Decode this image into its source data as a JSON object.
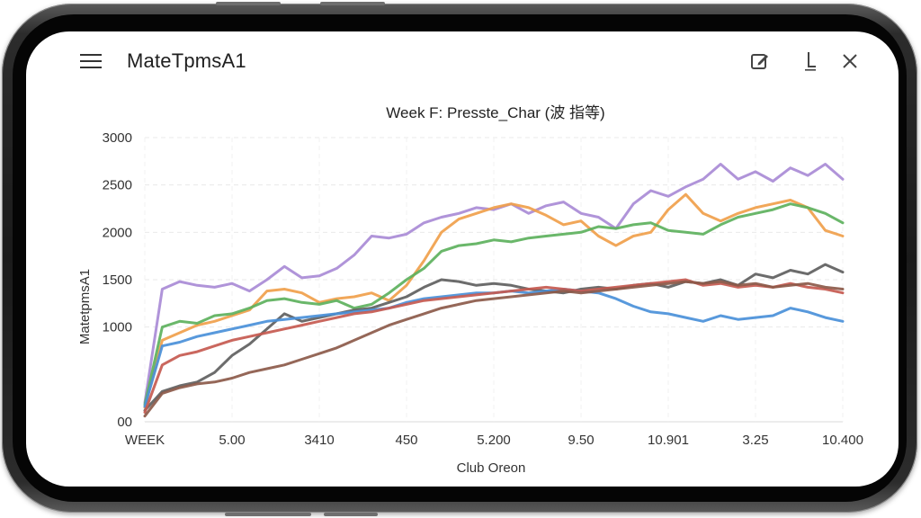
{
  "app": {
    "title": "MateTpmsA1"
  },
  "toolbar": {
    "menu_icon": "hamburger-menu-icon",
    "edit_icon": "edit-square-icon",
    "export_icon": "download-line-icon",
    "close_icon": "close-icon"
  },
  "chart_data": {
    "type": "line",
    "title": "Week F: Presste_Char (波 指等)",
    "xlabel": "Club Oreon",
    "ylabel": "MatetpmsA1",
    "x_tick_labels": [
      "WEEK",
      "5.00",
      "3410",
      "450",
      "5.200",
      "9.50",
      "10.901",
      "3.25",
      "10.400"
    ],
    "y_ticks": [
      {
        "value": 0,
        "label": "00"
      },
      {
        "value": 1000,
        "label": "1000"
      },
      {
        "value": 1500,
        "label": "1500"
      },
      {
        "value": 2000,
        "label": "2000"
      },
      {
        "value": 2500,
        "label": "2500"
      },
      {
        "value": 3000,
        "label": "3000"
      }
    ],
    "ylim": [
      0,
      3000
    ],
    "x_count": 41,
    "grid": true,
    "legend": "none",
    "series": [
      {
        "color": "#a98bd6",
        "values": [
          200,
          1400,
          1480,
          1440,
          1420,
          1460,
          1380,
          1500,
          1640,
          1520,
          1540,
          1620,
          1760,
          1960,
          1940,
          1980,
          2100,
          2160,
          2200,
          2260,
          2240,
          2300,
          2200,
          2280,
          2320,
          2200,
          2160,
          2040,
          2300,
          2440,
          2380,
          2480,
          2560,
          2720,
          2560,
          2640,
          2540,
          2680,
          2600,
          2720,
          2560
        ]
      },
      {
        "color": "#f0a04b",
        "values": [
          150,
          860,
          940,
          1020,
          1060,
          1120,
          1180,
          1380,
          1400,
          1360,
          1260,
          1300,
          1320,
          1360,
          1280,
          1440,
          1700,
          2000,
          2140,
          2200,
          2260,
          2300,
          2260,
          2180,
          2080,
          2120,
          1960,
          1860,
          1960,
          2000,
          2240,
          2400,
          2200,
          2120,
          2200,
          2260,
          2300,
          2340,
          2260,
          2020,
          1960
        ]
      },
      {
        "color": "#5db15d",
        "values": [
          180,
          1000,
          1060,
          1040,
          1120,
          1140,
          1200,
          1280,
          1300,
          1260,
          1240,
          1280,
          1200,
          1240,
          1360,
          1500,
          1620,
          1800,
          1860,
          1880,
          1920,
          1900,
          1940,
          1960,
          1980,
          2000,
          2060,
          2040,
          2080,
          2100,
          2020,
          2000,
          1980,
          2080,
          2160,
          2200,
          2240,
          2300,
          2260,
          2200,
          2100
        ]
      },
      {
        "color": "#5f5f5f",
        "values": [
          120,
          320,
          380,
          420,
          520,
          700,
          820,
          980,
          1140,
          1060,
          1100,
          1140,
          1180,
          1200,
          1260,
          1320,
          1420,
          1500,
          1480,
          1440,
          1460,
          1440,
          1400,
          1380,
          1360,
          1400,
          1420,
          1400,
          1440,
          1460,
          1420,
          1480,
          1460,
          1500,
          1440,
          1560,
          1520,
          1600,
          1560,
          1660,
          1580
        ]
      },
      {
        "color": "#4a90d9",
        "values": [
          160,
          800,
          840,
          900,
          940,
          980,
          1020,
          1060,
          1080,
          1100,
          1120,
          1140,
          1160,
          1180,
          1200,
          1260,
          1300,
          1320,
          1340,
          1360,
          1360,
          1380,
          1360,
          1380,
          1400,
          1380,
          1360,
          1300,
          1220,
          1160,
          1140,
          1100,
          1060,
          1120,
          1080,
          1100,
          1120,
          1200,
          1160,
          1100,
          1060
        ]
      },
      {
        "color": "#c65a50",
        "values": [
          100,
          600,
          700,
          740,
          800,
          860,
          900,
          940,
          980,
          1020,
          1060,
          1100,
          1140,
          1160,
          1200,
          1240,
          1280,
          1300,
          1320,
          1340,
          1360,
          1380,
          1400,
          1420,
          1400,
          1380,
          1400,
          1420,
          1440,
          1460,
          1480,
          1500,
          1440,
          1460,
          1420,
          1440,
          1420,
          1460,
          1420,
          1400,
          1360
        ]
      },
      {
        "color": "#8c5a4a",
        "values": [
          60,
          300,
          360,
          400,
          420,
          460,
          520,
          560,
          600,
          660,
          720,
          780,
          860,
          940,
          1020,
          1080,
          1140,
          1200,
          1240,
          1280,
          1300,
          1320,
          1340,
          1360,
          1380,
          1360,
          1380,
          1400,
          1420,
          1440,
          1460,
          1480,
          1460,
          1480,
          1440,
          1460,
          1420,
          1440,
          1460,
          1420,
          1400
        ]
      }
    ]
  }
}
